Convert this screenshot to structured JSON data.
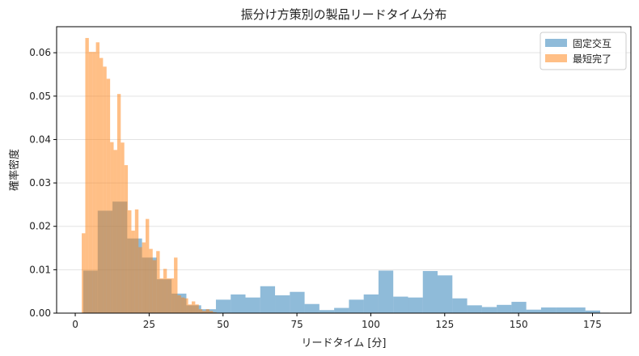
{
  "chart_data": {
    "type": "histogram",
    "title": "振分け方策別の製品リードタイム分布",
    "xlabel": "リードタイム [分]",
    "ylabel": "確率密度",
    "xlim": [
      -6.3,
      188
    ],
    "ylim": [
      0,
      0.066
    ],
    "xticks": [
      0,
      25,
      50,
      75,
      100,
      125,
      150,
      175
    ],
    "yticks": [
      0.0,
      0.01,
      0.02,
      0.03,
      0.04,
      0.05,
      0.06
    ],
    "ytick_labels": [
      "0.00",
      "0.01",
      "0.02",
      "0.03",
      "0.04",
      "0.05",
      "0.06"
    ],
    "grid": "y",
    "legend_position": "top-right",
    "series": [
      {
        "name": "固定交互",
        "color": "#1f77b4",
        "opacity": 0.5,
        "bin_edges": [
          2.7,
          7.6,
          12.6,
          17.6,
          22.6,
          27.6,
          32.6,
          37.6,
          42.6,
          47.6,
          52.6,
          57.6,
          62.6,
          67.6,
          72.6,
          77.6,
          82.6,
          87.6,
          92.6,
          97.6,
          102.6,
          107.6,
          112.6,
          117.6,
          122.6,
          127.6,
          132.6,
          137.6,
          142.6,
          147.6,
          152.6,
          157.6,
          162.6,
          167.6,
          172.6,
          177.6,
          180.5
        ],
        "densities": [
          0.0098,
          0.0236,
          0.0257,
          0.0172,
          0.0128,
          0.0078,
          0.0045,
          0.0018,
          0.0009,
          0.0031,
          0.0043,
          0.0036,
          0.0062,
          0.0041,
          0.0049,
          0.0021,
          0.0007,
          0.0012,
          0.0031,
          0.0043,
          0.0098,
          0.0038,
          0.0036,
          0.0097,
          0.0087,
          0.0034,
          0.0018,
          0.0014,
          0.0019,
          0.0026,
          0.0008,
          0.0013,
          0.0013,
          0.0013,
          0.0006,
          0.0001
        ]
      },
      {
        "name": "最短完了",
        "color": "#ff7f0e",
        "opacity": 0.5,
        "bin_edges": [
          2.2,
          3.4,
          4.6,
          5.8,
          7.0,
          8.2,
          9.4,
          10.6,
          11.8,
          13.0,
          14.2,
          15.4,
          16.6,
          17.8,
          19.0,
          20.2,
          21.4,
          22.6,
          23.8,
          25.0,
          26.2,
          27.4,
          28.6,
          29.8,
          31.0,
          32.2,
          33.4,
          34.6,
          35.8,
          37.0,
          38.2,
          39.4,
          40.6,
          41.8,
          43.0,
          44.2,
          45.4,
          46.6,
          47.8
        ],
        "densities": [
          0.0184,
          0.0634,
          0.0602,
          0.0602,
          0.0624,
          0.0588,
          0.0568,
          0.054,
          0.0394,
          0.0376,
          0.0505,
          0.0393,
          0.0341,
          0.0237,
          0.019,
          0.0239,
          0.0152,
          0.0163,
          0.0217,
          0.0148,
          0.0122,
          0.0143,
          0.008,
          0.0102,
          0.008,
          0.008,
          0.0128,
          0.0041,
          0.0036,
          0.0034,
          0.002,
          0.0027,
          0.002,
          0.0009,
          0.0005,
          0.0009,
          0.0005,
          0.0002
        ]
      }
    ]
  }
}
